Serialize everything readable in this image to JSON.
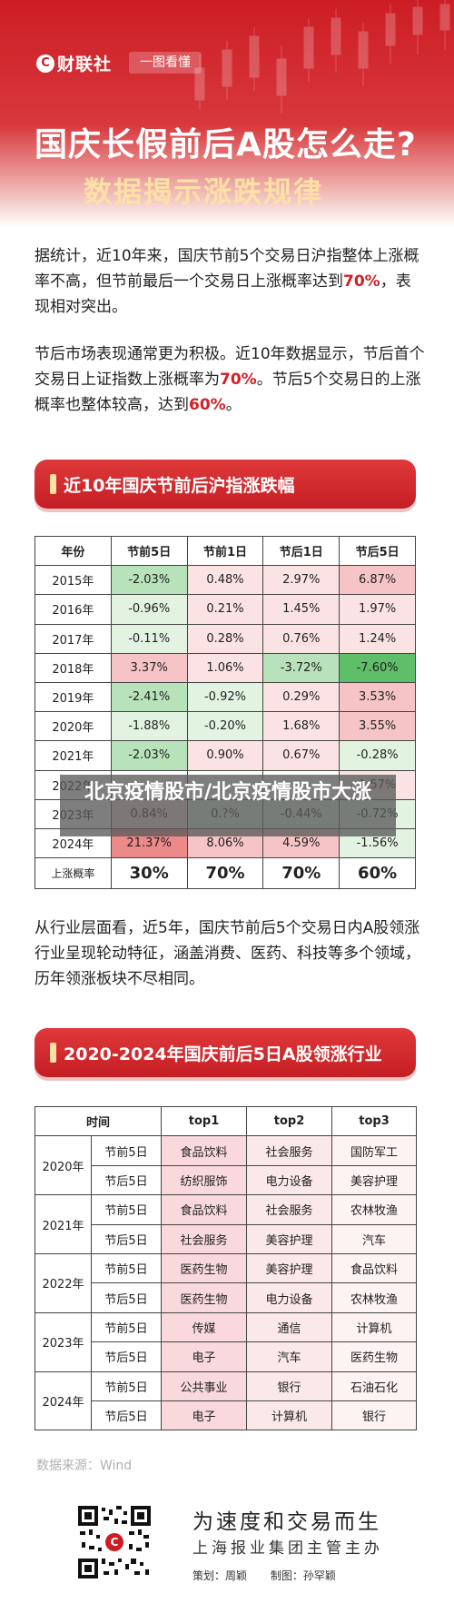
{
  "header": {
    "brand": "财联社",
    "brand_mark": "C",
    "tag": "一图看懂",
    "title_line1": "国庆长假前后A股怎么走?",
    "title_line2": "数据揭示涨跌规律"
  },
  "intro": {
    "p1_a": "据统计，近10年来，国庆节前5个交易日沪指整体上涨概率不高，但节前最后一个交易日上涨概率达到",
    "p1_hl": "70%",
    "p1_b": "，表现相对突出。",
    "p2_a": "节后市场表现通常更为积极。近10年数据显示，节后首个交易日上证指数上涨概率为",
    "p2_hl1": "70%",
    "p2_b": "。节后5个交易日的上涨概率也整体较高，达到",
    "p2_hl2": "60%",
    "p2_c": "。"
  },
  "section1": {
    "title": "近10年国庆节前后沪指涨跌幅"
  },
  "table1": {
    "headers": [
      "年份",
      "节前5日",
      "节前1日",
      "节后1日",
      "节后5日"
    ],
    "rows": [
      [
        "2015年",
        "-2.03%",
        "0.48%",
        "2.97%",
        "6.87%"
      ],
      [
        "2016年",
        "-0.96%",
        "0.21%",
        "1.45%",
        "1.97%"
      ],
      [
        "2017年",
        "-0.11%",
        "0.28%",
        "0.76%",
        "1.24%"
      ],
      [
        "2018年",
        "3.37%",
        "1.06%",
        "-3.72%",
        "-7.60%"
      ],
      [
        "2019年",
        "-2.41%",
        "-0.92%",
        "0.29%",
        "3.53%"
      ],
      [
        "2020年",
        "-1.88%",
        "-0.20%",
        "1.68%",
        "3.55%"
      ],
      [
        "2021年",
        "-2.03%",
        "0.90%",
        "0.67%",
        "-0.28%"
      ],
      [
        "2022年",
        "",
        "",
        "",
        "1.57%"
      ],
      [
        "2023年",
        "0.84%",
        "0.?%",
        "-0.44%",
        "-0.72%"
      ],
      [
        "2024年",
        "21.37%",
        "8.06%",
        "4.59%",
        "-1.56%"
      ]
    ],
    "footer": [
      "上涨概率",
      "30%",
      "70%",
      "70%",
      "60%"
    ],
    "colors": {
      "up_light": "#fbe3e3",
      "up_mid": "#f6c4c4",
      "up_strong": "#ec8a8a",
      "down_light": "#e2f3e2",
      "down_mid": "#b8e2b9",
      "down_strong": "#5fbf68",
      "neutral": "#ffffff"
    }
  },
  "intro2": {
    "text": "从行业层面看，近5年，国庆节前后5个交易日内A股领涨行业呈现轮动特征，涵盖消费、医药、科技等多个领域，历年领涨板块不尽相同。"
  },
  "section2": {
    "title": "2020-2024年国庆前后5日A股领涨行业"
  },
  "table2": {
    "headers": [
      "时间",
      "top1",
      "top2",
      "top3"
    ],
    "groups": [
      {
        "year": "2020年",
        "rows": [
          [
            "节前5日",
            "食品饮料",
            "社会服务",
            "国防军工"
          ],
          [
            "节后5日",
            "纺织服饰",
            "电力设备",
            "美容护理"
          ]
        ]
      },
      {
        "year": "2021年",
        "rows": [
          [
            "节前5日",
            "食品饮料",
            "社会服务",
            "农林牧渔"
          ],
          [
            "节后5日",
            "社会服务",
            "美容护理",
            "汽车"
          ]
        ]
      },
      {
        "year": "2022年",
        "rows": [
          [
            "节前5日",
            "医药生物",
            "美容护理",
            "食品饮料"
          ],
          [
            "节后5日",
            "医药生物",
            "电力设备",
            "农林牧渔"
          ]
        ]
      },
      {
        "year": "2023年",
        "rows": [
          [
            "节前5日",
            "传媒",
            "通信",
            "计算机"
          ],
          [
            "节后5日",
            "电子",
            "汽车",
            "医药生物"
          ]
        ]
      },
      {
        "year": "2024年",
        "rows": [
          [
            "节前5日",
            "公共事业",
            "银行",
            "石油石化"
          ],
          [
            "节后5日",
            "电子",
            "计算机",
            "银行"
          ]
        ]
      }
    ],
    "colors": {
      "top1": "#f9d9db",
      "top2": "#fbe8e9",
      "top3": "#fdf3f3",
      "time": "#ffffff"
    }
  },
  "overlay": {
    "text": "北京疫情股市/北京疫情股市大涨"
  },
  "footer": {
    "source": "数据来源：Wind",
    "qr_mark": "C",
    "slogan1": "为速度和交易而生",
    "slogan2": "上海报业集团主管主办",
    "planner": "策划：周颖",
    "producer": "制图：孙罕颖"
  }
}
